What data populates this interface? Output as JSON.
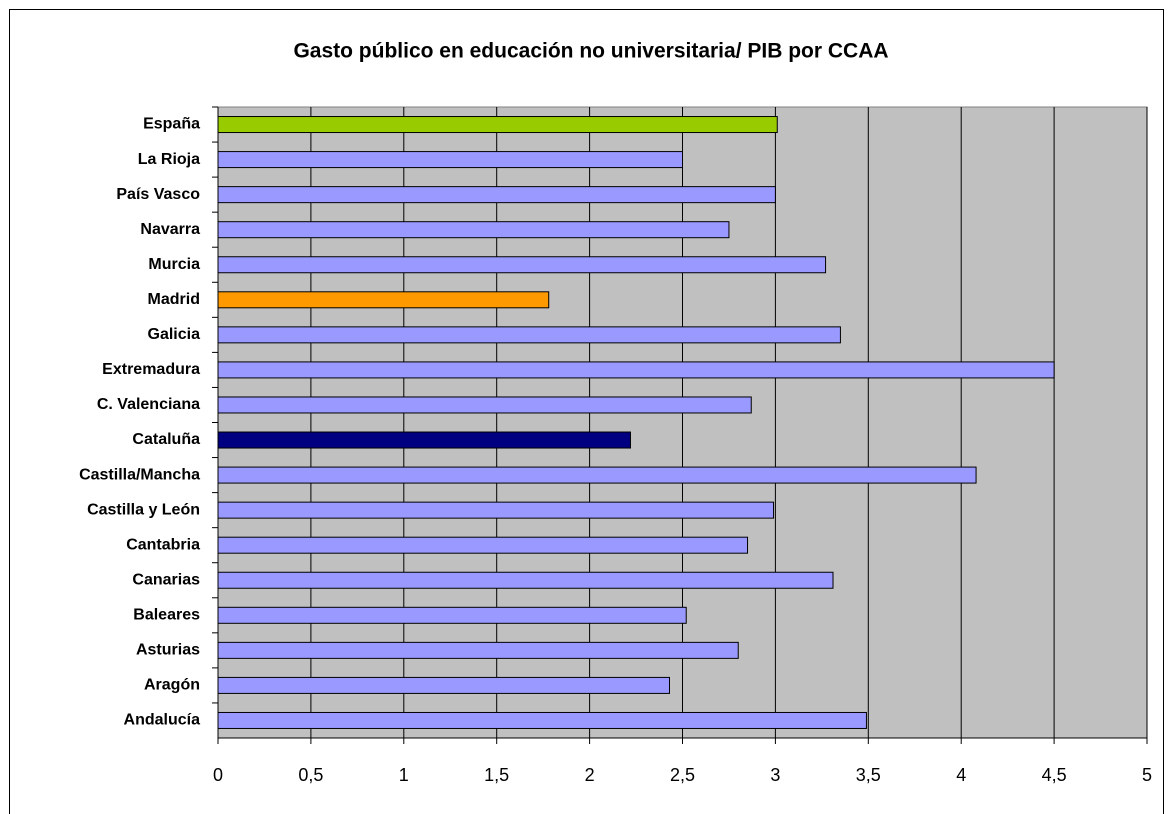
{
  "chart_data": {
    "type": "bar",
    "orientation": "horizontal",
    "title": "Gasto público en educación no universitaria/ PIB por CCAA",
    "categories": [
      "España",
      "La Rioja",
      "País Vasco",
      "Navarra",
      "Murcia",
      "Madrid",
      "Galicia",
      "Extremadura",
      "C. Valenciana",
      "Cataluña",
      "Castilla/Mancha",
      "Castilla y León",
      "Cantabria",
      "Canarias",
      "Baleares",
      "Asturias",
      "Aragón",
      "Andalucía"
    ],
    "values": [
      3.01,
      2.5,
      3.0,
      2.75,
      3.27,
      1.78,
      3.35,
      4.5,
      2.87,
      2.22,
      4.08,
      2.99,
      2.85,
      3.31,
      2.52,
      2.8,
      2.43,
      3.49
    ],
    "colors": [
      "#99cc00",
      "#9999ff",
      "#9999ff",
      "#9999ff",
      "#9999ff",
      "#ff9900",
      "#9999ff",
      "#9999ff",
      "#9999ff",
      "#000080",
      "#9999ff",
      "#9999ff",
      "#9999ff",
      "#9999ff",
      "#9999ff",
      "#9999ff",
      "#9999ff",
      "#9999ff"
    ],
    "xlim": [
      0,
      5
    ],
    "xticks": [
      0,
      {
        "value": 0.5,
        "label": "0,5"
      },
      1,
      {
        "value": 1.5,
        "label": "1,5"
      },
      2,
      {
        "value": 2.5,
        "label": "2,5"
      },
      3,
      {
        "value": 3.5,
        "label": "3,5"
      },
      4,
      {
        "value": 4.5,
        "label": "4,5"
      },
      5
    ],
    "grid": true
  }
}
